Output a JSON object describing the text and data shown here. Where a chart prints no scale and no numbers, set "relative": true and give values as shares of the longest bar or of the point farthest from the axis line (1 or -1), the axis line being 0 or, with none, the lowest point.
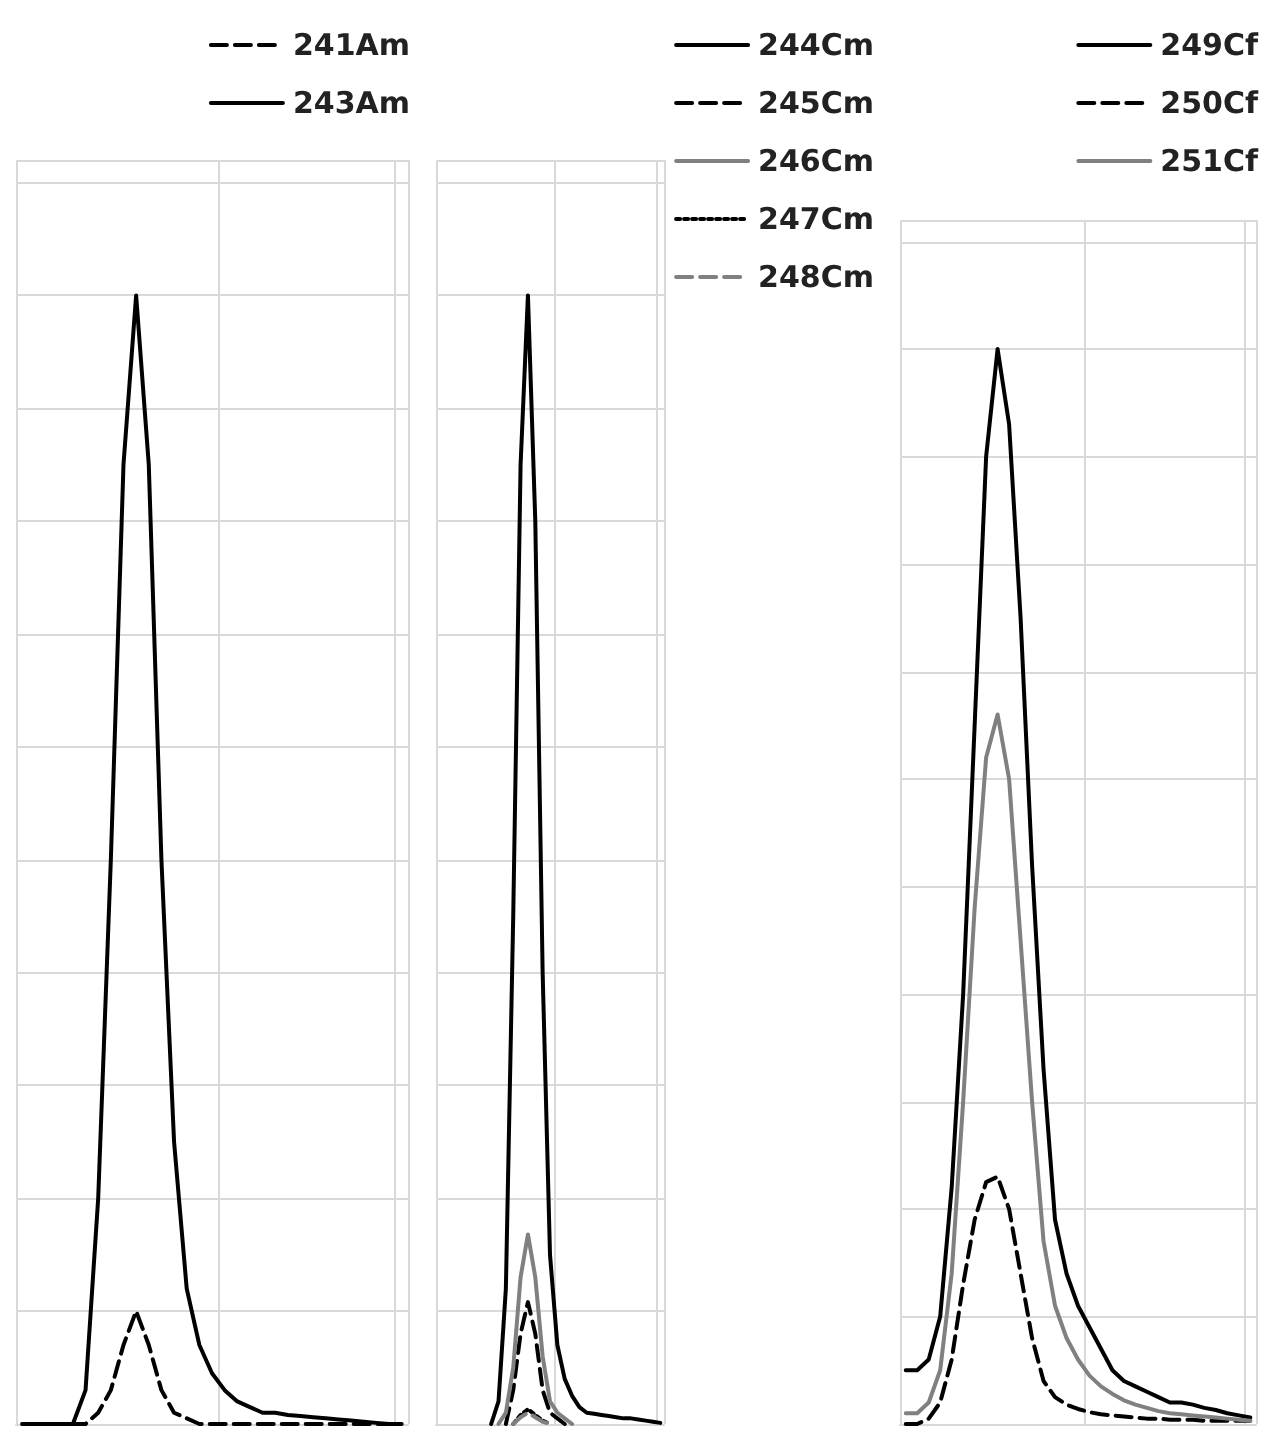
{
  "chart_data": [
    {
      "type": "line",
      "relative": true,
      "grid": true,
      "legend": "top right",
      "marker": "none",
      "tick_labels": false,
      "categories": [
        null,
        null,
        null,
        null,
        null,
        null,
        null,
        null,
        null,
        null,
        null,
        null,
        null,
        null,
        null,
        null,
        null,
        null,
        null,
        null,
        null,
        null,
        null,
        null,
        null,
        null,
        null,
        null,
        null,
        null,
        null
      ],
      "series": [
        {
          "name": "241Am",
          "color": "#000000",
          "line_style": "dashed",
          "values": [
            0,
            0,
            0,
            0,
            0,
            0,
            0.01,
            0.03,
            0.07,
            0.1,
            0.07,
            0.03,
            0.01,
            0.005,
            0,
            0,
            0,
            0,
            0,
            0,
            0,
            0,
            0,
            0,
            0,
            0,
            0,
            0,
            0,
            0,
            0
          ]
        },
        {
          "name": "243Am",
          "color": "#000000",
          "line_style": "solid",
          "values": [
            0,
            0,
            0,
            0,
            0,
            0.03,
            0.2,
            0.5,
            0.85,
            1,
            0.85,
            0.5,
            0.25,
            0.12,
            0.07,
            0.045,
            0.03,
            0.02,
            0.015,
            0.01,
            0.01,
            0.008,
            0.007,
            0.006,
            0.005,
            0.004,
            0.003,
            0.002,
            0.001,
            0,
            0
          ]
        }
      ]
    },
    {
      "type": "line",
      "relative": true,
      "grid": true,
      "legend": "right",
      "marker": "none",
      "tick_labels": false,
      "categories": [
        null,
        null,
        null,
        null,
        null,
        null,
        null,
        null,
        null,
        null,
        null,
        null,
        null,
        null,
        null,
        null,
        null,
        null,
        null,
        null,
        null,
        null,
        null,
        null,
        null,
        null,
        null,
        null,
        null,
        null,
        null
      ],
      "series": [
        {
          "name": "244Cm",
          "color": "#000000",
          "line_style": "solid",
          "values": [
            null,
            null,
            null,
            null,
            null,
            null,
            null,
            0,
            0.02,
            0.12,
            0.45,
            0.85,
            1,
            0.8,
            0.4,
            0.15,
            0.07,
            0.04,
            0.025,
            0.015,
            0.01,
            0.009,
            0.008,
            0.007,
            0.006,
            0.005,
            0.005,
            0.004,
            0.003,
            0.002,
            0.001
          ]
        },
        {
          "name": "245Cm",
          "color": "#000000",
          "line_style": "dashed",
          "values": [
            null,
            null,
            null,
            null,
            null,
            null,
            null,
            null,
            null,
            0,
            0.03,
            0.08,
            0.108,
            0.08,
            0.03,
            0.01,
            0.005,
            0,
            null,
            null,
            null,
            null,
            null,
            null,
            null,
            null,
            null,
            null,
            null,
            null,
            null
          ]
        },
        {
          "name": "246Cm",
          "color": "#808080",
          "line_style": "solid",
          "values": [
            null,
            null,
            null,
            null,
            null,
            null,
            null,
            null,
            0,
            0.01,
            0.05,
            0.13,
            0.168,
            0.13,
            0.06,
            0.02,
            0.01,
            0.005,
            0,
            null,
            null,
            null,
            null,
            null,
            null,
            null,
            null,
            null,
            null,
            null,
            null
          ]
        },
        {
          "name": "247Cm",
          "color": "#000000",
          "line_style": "dotted",
          "values": [
            null,
            null,
            null,
            null,
            null,
            null,
            null,
            null,
            null,
            null,
            0,
            0.008,
            0.013,
            0.008,
            0.003,
            0,
            null,
            null,
            null,
            null,
            null,
            null,
            null,
            null,
            null,
            null,
            null,
            null,
            null,
            null,
            null
          ]
        },
        {
          "name": "248Cm",
          "color": "#808080",
          "line_style": "dashed",
          "values": [
            null,
            null,
            null,
            null,
            null,
            null,
            null,
            null,
            null,
            null,
            0,
            0.006,
            0.01,
            0.006,
            0.002,
            0,
            null,
            null,
            null,
            null,
            null,
            null,
            null,
            null,
            null,
            null,
            null,
            null,
            null,
            null,
            null
          ]
        }
      ]
    },
    {
      "type": "line",
      "relative": true,
      "grid": true,
      "legend": "top right",
      "marker": "none",
      "tick_labels": false,
      "categories": [
        null,
        null,
        null,
        null,
        null,
        null,
        null,
        null,
        null,
        null,
        null,
        null,
        null,
        null,
        null,
        null,
        null,
        null,
        null,
        null,
        null,
        null,
        null,
        null,
        null,
        null,
        null,
        null,
        null,
        null,
        null
      ],
      "series": [
        {
          "name": "249Cf",
          "color": "#000000",
          "line_style": "solid",
          "values": [
            0.05,
            0.05,
            0.06,
            0.1,
            0.22,
            0.4,
            0.65,
            0.9,
            1,
            0.93,
            0.75,
            0.52,
            0.33,
            0.19,
            0.14,
            0.11,
            0.09,
            0.07,
            0.05,
            0.04,
            0.035,
            0.03,
            0.025,
            0.02,
            0.02,
            0.018,
            0.015,
            0.013,
            0.01,
            0.008,
            0.006
          ]
        },
        {
          "name": "250Cf",
          "color": "#000000",
          "line_style": "dashed",
          "values": [
            0,
            0,
            0.005,
            0.02,
            0.06,
            0.13,
            0.19,
            0.225,
            0.23,
            0.2,
            0.14,
            0.08,
            0.04,
            0.025,
            0.018,
            0.014,
            0.011,
            0.009,
            0.008,
            0.007,
            0.006,
            0.005,
            0.005,
            0.004,
            0.004,
            0.004,
            0.003,
            0.003,
            0.003,
            0.003,
            0.003
          ]
        },
        {
          "name": "251Cf",
          "color": "#808080",
          "line_style": "solid",
          "values": [
            0.01,
            0.01,
            0.02,
            0.05,
            0.14,
            0.3,
            0.48,
            0.62,
            0.66,
            0.6,
            0.45,
            0.3,
            0.17,
            0.11,
            0.08,
            0.06,
            0.045,
            0.035,
            0.028,
            0.022,
            0.018,
            0.015,
            0.012,
            0.01,
            0.009,
            0.008,
            0.007,
            0.006,
            0.005,
            0.004,
            0.003
          ]
        }
      ]
    }
  ]
}
